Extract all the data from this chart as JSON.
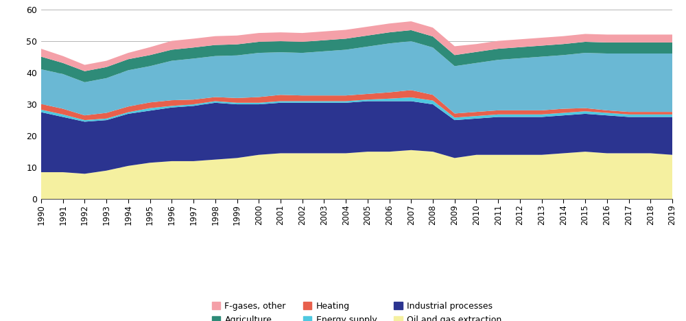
{
  "years": [
    1990,
    1991,
    1992,
    1993,
    1994,
    1995,
    1996,
    1997,
    1998,
    1999,
    2000,
    2001,
    2002,
    2003,
    2004,
    2005,
    2006,
    2007,
    2008,
    2009,
    2010,
    2011,
    2012,
    2013,
    2014,
    2015,
    2016,
    2017,
    2018,
    2019
  ],
  "oil_and_gas": [
    8.5,
    8.5,
    8.0,
    9.0,
    10.5,
    11.5,
    12.0,
    12.0,
    12.5,
    13.0,
    14.0,
    14.5,
    14.5,
    14.5,
    14.5,
    15.0,
    15.0,
    15.5,
    15.0,
    13.0,
    14.0,
    14.0,
    14.0,
    14.0,
    14.5,
    15.0,
    14.5,
    14.5,
    14.5,
    14.0
  ],
  "industrial_processes": [
    19.0,
    17.5,
    16.5,
    16.0,
    16.5,
    16.5,
    17.0,
    17.5,
    18.0,
    17.0,
    16.0,
    16.0,
    16.0,
    16.0,
    16.0,
    16.0,
    16.0,
    15.5,
    15.0,
    12.0,
    11.5,
    12.0,
    12.0,
    12.0,
    12.0,
    12.0,
    12.0,
    11.5,
    11.5,
    12.0
  ],
  "energy_supply": [
    0.8,
    0.8,
    0.5,
    0.5,
    0.5,
    0.8,
    0.5,
    0.5,
    0.5,
    0.5,
    0.5,
    0.5,
    0.5,
    0.5,
    0.5,
    0.5,
    0.8,
    1.2,
    1.2,
    0.8,
    0.8,
    0.8,
    0.8,
    0.8,
    0.8,
    0.8,
    0.8,
    0.8,
    0.8,
    0.8
  ],
  "heating": [
    1.8,
    1.8,
    1.5,
    1.8,
    1.8,
    1.8,
    1.8,
    1.5,
    1.3,
    1.5,
    1.8,
    2.0,
    1.8,
    1.8,
    1.8,
    1.8,
    2.0,
    2.3,
    1.8,
    1.3,
    1.3,
    1.3,
    1.3,
    1.3,
    1.3,
    1.0,
    0.8,
    0.8,
    0.8,
    0.8
  ],
  "transport": [
    11.0,
    11.0,
    10.5,
    11.0,
    11.5,
    11.5,
    12.5,
    13.0,
    13.0,
    13.5,
    14.0,
    13.5,
    13.5,
    14.0,
    14.5,
    15.0,
    15.5,
    15.5,
    15.0,
    15.0,
    15.5,
    16.0,
    16.5,
    17.0,
    17.0,
    17.5,
    18.0,
    18.5,
    18.5,
    18.5
  ],
  "agriculture": [
    4.0,
    3.5,
    3.5,
    3.5,
    3.5,
    3.5,
    3.5,
    3.5,
    3.5,
    3.5,
    3.5,
    3.5,
    3.5,
    3.5,
    3.5,
    3.5,
    3.5,
    3.5,
    3.5,
    3.5,
    3.5,
    3.5,
    3.5,
    3.5,
    3.5,
    3.5,
    3.5,
    3.5,
    3.5,
    3.5
  ],
  "f_gases_other": [
    2.5,
    2.2,
    2.0,
    2.0,
    2.0,
    2.5,
    2.8,
    2.8,
    2.8,
    2.8,
    2.8,
    2.8,
    2.8,
    2.8,
    2.8,
    2.8,
    2.8,
    2.8,
    2.8,
    2.8,
    2.5,
    2.5,
    2.5,
    2.5,
    2.5,
    2.5,
    2.5,
    2.5,
    2.5,
    2.5
  ],
  "colors": {
    "oil_and_gas": "#f5f0a0",
    "industrial_processes": "#2b3490",
    "energy_supply": "#4fc8e0",
    "heating": "#e8604c",
    "transport": "#6ab8d4",
    "agriculture": "#2e8b78",
    "f_gases_other": "#f4a0a8"
  },
  "ylim": [
    0,
    60
  ],
  "yticks": [
    0,
    10,
    20,
    30,
    40,
    50,
    60
  ],
  "background_color": "#ffffff"
}
